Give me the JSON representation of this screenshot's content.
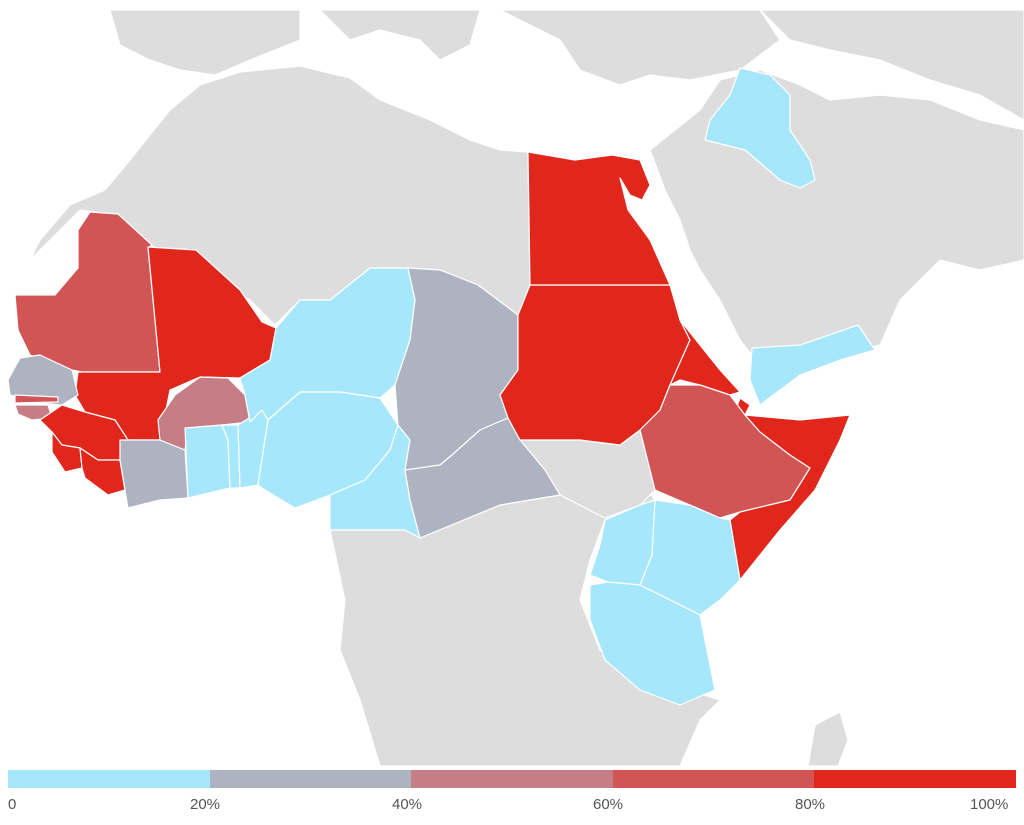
{
  "scale": {
    "colors": [
      "#a6e7fb",
      "#aeb3c1",
      "#c67e86",
      "#d25556",
      "#e1261c"
    ],
    "no_data_color": "#dddddd",
    "water_color": "#ffffff",
    "labels": [
      "0",
      "20%",
      "40%",
      "60%",
      "80%",
      "100%"
    ]
  },
  "regions": [
    {
      "name": "Mauritania",
      "bin": 3
    },
    {
      "name": "Mali",
      "bin": 4
    },
    {
      "name": "Senegal",
      "bin": 1
    },
    {
      "name": "Gambia",
      "bin": 3
    },
    {
      "name": "Guinea-Bissau",
      "bin": 2
    },
    {
      "name": "Guinea",
      "bin": 4
    },
    {
      "name": "Sierra Leone",
      "bin": 4
    },
    {
      "name": "Liberia",
      "bin": 4
    },
    {
      "name": "Cote d'Ivoire",
      "bin": 1
    },
    {
      "name": "Burkina Faso",
      "bin": 2
    },
    {
      "name": "Ghana",
      "bin": 0
    },
    {
      "name": "Togo",
      "bin": 0
    },
    {
      "name": "Benin",
      "bin": 0
    },
    {
      "name": "Niger",
      "bin": 0
    },
    {
      "name": "Nigeria",
      "bin": 0
    },
    {
      "name": "Cameroon",
      "bin": 0
    },
    {
      "name": "Chad",
      "bin": 1
    },
    {
      "name": "Central African Republic",
      "bin": 1
    },
    {
      "name": "Sudan",
      "bin": 4
    },
    {
      "name": "Egypt",
      "bin": 4
    },
    {
      "name": "Eritrea",
      "bin": 4
    },
    {
      "name": "Djibouti",
      "bin": 4
    },
    {
      "name": "Ethiopia",
      "bin": 3
    },
    {
      "name": "Somalia",
      "bin": 4
    },
    {
      "name": "Kenya",
      "bin": 0
    },
    {
      "name": "Uganda",
      "bin": 0
    },
    {
      "name": "Tanzania",
      "bin": 0
    },
    {
      "name": "Yemen",
      "bin": 0
    },
    {
      "name": "Iraq",
      "bin": 0
    }
  ]
}
